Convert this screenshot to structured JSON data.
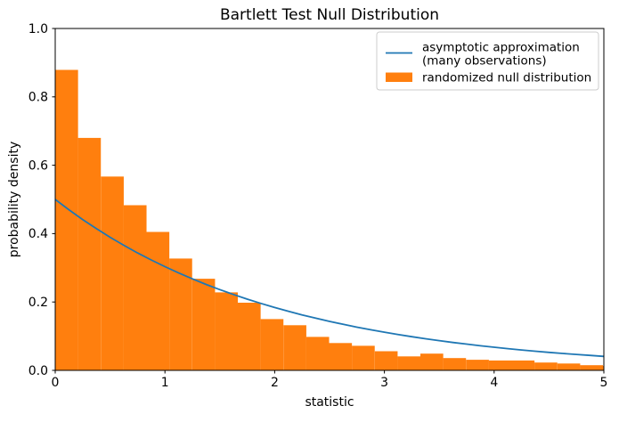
{
  "figure": {
    "background": "#ffffff"
  },
  "colors": {
    "line": "#1f77b4",
    "bar": "#ff7f0e",
    "text": "#000000",
    "spine": "#000000",
    "legend_border": "#cccccc"
  },
  "chart_data": {
    "type": "histogram_with_line",
    "title": "Bartlett Test Null Distribution",
    "xlabel": "statistic",
    "ylabel": "probability density",
    "xlim": [
      0,
      5
    ],
    "ylim": [
      0,
      1.0
    ],
    "x_tick_values": [
      0,
      1,
      2,
      3,
      4,
      5
    ],
    "x_tick_labels": [
      "0",
      "1",
      "2",
      "3",
      "4",
      "5"
    ],
    "y_tick_values": [
      0.0,
      0.2,
      0.4,
      0.6,
      0.8,
      1.0
    ],
    "y_tick_labels": [
      "0.0",
      "0.2",
      "0.4",
      "0.6",
      "0.8",
      "1.0"
    ],
    "grid": false,
    "legend_position": "upper right",
    "series": [
      {
        "name": "asymptotic approximation (many observations)",
        "type": "line",
        "color": "#1f77b4",
        "formula": "0.5 * exp(-x/2) (chi-squared df=2 pdf)",
        "x": [
          0,
          0.125,
          0.25,
          0.375,
          0.5,
          0.625,
          0.75,
          0.875,
          1,
          1.125,
          1.25,
          1.375,
          1.5,
          1.625,
          1.75,
          1.875,
          2,
          2.125,
          2.25,
          2.375,
          2.5,
          2.625,
          2.75,
          2.875,
          3,
          3.125,
          3.25,
          3.375,
          3.5,
          3.625,
          3.75,
          3.875,
          4,
          4.125,
          4.25,
          4.375,
          4.5,
          4.625,
          4.75,
          4.875,
          5
        ],
        "y": [
          0.5,
          0.4697,
          0.4412,
          0.4145,
          0.3894,
          0.3658,
          0.3436,
          0.3228,
          0.3033,
          0.2849,
          0.2676,
          0.2514,
          0.2362,
          0.2219,
          0.2084,
          0.1958,
          0.1839,
          0.1728,
          0.1623,
          0.1525,
          0.1432,
          0.1346,
          0.1264,
          0.1188,
          0.1116,
          0.1048,
          0.0984,
          0.0925,
          0.0869,
          0.0816,
          0.0767,
          0.072,
          0.0677,
          0.0636,
          0.0597,
          0.0561,
          0.0527,
          0.0495,
          0.0465,
          0.0437,
          0.041
        ]
      },
      {
        "name": "randomized null distribution",
        "type": "histogram",
        "color": "#ff7f0e",
        "bin_width": 0.208,
        "bin_starts": [
          0,
          0.208,
          0.416,
          0.624,
          0.832,
          1.04,
          1.248,
          1.456,
          1.664,
          1.872,
          2.08,
          2.288,
          2.496,
          2.704,
          2.912,
          3.12,
          3.328,
          3.536,
          3.744,
          3.952,
          4.16,
          4.368,
          4.576,
          4.784,
          4.992
        ],
        "densities": [
          0.879,
          0.68,
          0.567,
          0.483,
          0.405,
          0.327,
          0.268,
          0.228,
          0.198,
          0.15,
          0.132,
          0.098,
          0.08,
          0.072,
          0.056,
          0.041,
          0.049,
          0.036,
          0.031,
          0.029,
          0.029,
          0.023,
          0.02,
          0.015,
          0.013
        ]
      }
    ]
  },
  "legend": {
    "entries": [
      {
        "line1": "asymptotic approximation",
        "line2": "(many observations)",
        "swatch": "line",
        "color": "#1f77b4"
      },
      {
        "line1": "randomized null distribution",
        "line2": "",
        "swatch": "patch",
        "color": "#ff7f0e"
      }
    ]
  }
}
